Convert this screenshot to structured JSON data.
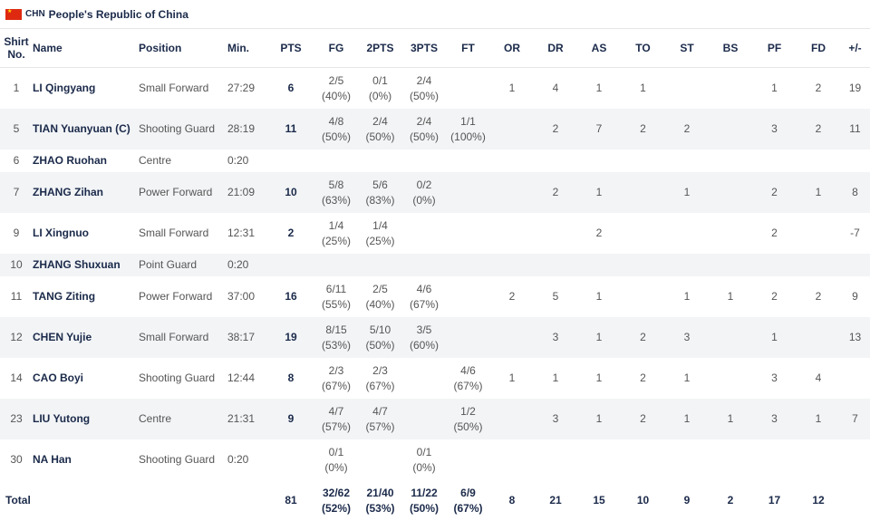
{
  "team": {
    "flag": "china-flag-icon",
    "flag_color": "#de2910",
    "code": "CHN",
    "name": "People's Republic of China"
  },
  "columns": {
    "shirt": "Shirt No.",
    "name": "Name",
    "position": "Position",
    "min": "Min.",
    "pts": "PTS",
    "fg": "FG",
    "two": "2PTS",
    "three": "3PTS",
    "ft": "FT",
    "or": "OR",
    "dr": "DR",
    "as": "AS",
    "to": "TO",
    "st": "ST",
    "bs": "BS",
    "pf": "PF",
    "fd": "FD",
    "pm": "+/-"
  },
  "players": [
    {
      "no": "1",
      "name": "LI Qingyang",
      "pos": "Small Forward",
      "min": "27:29",
      "pts": "6",
      "fg": [
        "2/5",
        "(40%)"
      ],
      "two": [
        "0/1",
        "(0%)"
      ],
      "three": [
        "2/4",
        "(50%)"
      ],
      "ft": [
        "",
        ""
      ],
      "or": "1",
      "dr": "4",
      "as": "1",
      "to": "1",
      "st": "",
      "bs": "",
      "pf": "1",
      "fd": "2",
      "pm": "19"
    },
    {
      "no": "5",
      "name": "TIAN Yuanyuan (C)",
      "pos": "Shooting Guard",
      "min": "28:19",
      "pts": "11",
      "fg": [
        "4/8",
        "(50%)"
      ],
      "two": [
        "2/4",
        "(50%)"
      ],
      "three": [
        "2/4",
        "(50%)"
      ],
      "ft": [
        "1/1",
        "(100%)"
      ],
      "or": "",
      "dr": "2",
      "as": "7",
      "to": "2",
      "st": "2",
      "bs": "",
      "pf": "3",
      "fd": "2",
      "pm": "11"
    },
    {
      "no": "6",
      "name": "ZHAO Ruohan",
      "pos": "Centre",
      "min": "0:20",
      "pts": "",
      "fg": [
        "",
        ""
      ],
      "two": [
        "",
        ""
      ],
      "three": [
        "",
        ""
      ],
      "ft": [
        "",
        ""
      ],
      "or": "",
      "dr": "",
      "as": "",
      "to": "",
      "st": "",
      "bs": "",
      "pf": "",
      "fd": "",
      "pm": ""
    },
    {
      "no": "7",
      "name": "ZHANG Zihan",
      "pos": "Power Forward",
      "min": "21:09",
      "pts": "10",
      "fg": [
        "5/8",
        "(63%)"
      ],
      "two": [
        "5/6",
        "(83%)"
      ],
      "three": [
        "0/2",
        "(0%)"
      ],
      "ft": [
        "",
        ""
      ],
      "or": "",
      "dr": "2",
      "as": "1",
      "to": "",
      "st": "1",
      "bs": "",
      "pf": "2",
      "fd": "1",
      "pm": "8"
    },
    {
      "no": "9",
      "name": "LI Xingnuo",
      "pos": "Small Forward",
      "min": "12:31",
      "pts": "2",
      "fg": [
        "1/4",
        "(25%)"
      ],
      "two": [
        "1/4",
        "(25%)"
      ],
      "three": [
        "",
        ""
      ],
      "ft": [
        "",
        ""
      ],
      "or": "",
      "dr": "",
      "as": "2",
      "to": "",
      "st": "",
      "bs": "",
      "pf": "2",
      "fd": "",
      "pm": "-7"
    },
    {
      "no": "10",
      "name": "ZHANG Shuxuan",
      "pos": "Point Guard",
      "min": "0:20",
      "pts": "",
      "fg": [
        "",
        ""
      ],
      "two": [
        "",
        ""
      ],
      "three": [
        "",
        ""
      ],
      "ft": [
        "",
        ""
      ],
      "or": "",
      "dr": "",
      "as": "",
      "to": "",
      "st": "",
      "bs": "",
      "pf": "",
      "fd": "",
      "pm": ""
    },
    {
      "no": "11",
      "name": "TANG Ziting",
      "pos": "Power Forward",
      "min": "37:00",
      "pts": "16",
      "fg": [
        "6/11",
        "(55%)"
      ],
      "two": [
        "2/5",
        "(40%)"
      ],
      "three": [
        "4/6",
        "(67%)"
      ],
      "ft": [
        "",
        ""
      ],
      "or": "2",
      "dr": "5",
      "as": "1",
      "to": "",
      "st": "1",
      "bs": "1",
      "pf": "2",
      "fd": "2",
      "pm": "9"
    },
    {
      "no": "12",
      "name": "CHEN Yujie",
      "pos": "Small Forward",
      "min": "38:17",
      "pts": "19",
      "fg": [
        "8/15",
        "(53%)"
      ],
      "two": [
        "5/10",
        "(50%)"
      ],
      "three": [
        "3/5",
        "(60%)"
      ],
      "ft": [
        "",
        ""
      ],
      "or": "",
      "dr": "3",
      "as": "1",
      "to": "2",
      "st": "3",
      "bs": "",
      "pf": "1",
      "fd": "",
      "pm": "13"
    },
    {
      "no": "14",
      "name": "CAO Boyi",
      "pos": "Shooting Guard",
      "min": "12:44",
      "pts": "8",
      "fg": [
        "2/3",
        "(67%)"
      ],
      "two": [
        "2/3",
        "(67%)"
      ],
      "three": [
        "",
        ""
      ],
      "ft": [
        "4/6",
        "(67%)"
      ],
      "or": "1",
      "dr": "1",
      "as": "1",
      "to": "2",
      "st": "1",
      "bs": "",
      "pf": "3",
      "fd": "4",
      "pm": ""
    },
    {
      "no": "23",
      "name": "LIU Yutong",
      "pos": "Centre",
      "min": "21:31",
      "pts": "9",
      "fg": [
        "4/7",
        "(57%)"
      ],
      "two": [
        "4/7",
        "(57%)"
      ],
      "three": [
        "",
        ""
      ],
      "ft": [
        "1/2",
        "(50%)"
      ],
      "or": "",
      "dr": "3",
      "as": "1",
      "to": "2",
      "st": "1",
      "bs": "1",
      "pf": "3",
      "fd": "1",
      "pm": "7"
    },
    {
      "no": "30",
      "name": "NA Han",
      "pos": "Shooting Guard",
      "min": "0:20",
      "pts": "",
      "fg": [
        "0/1",
        "(0%)"
      ],
      "two": [
        "",
        ""
      ],
      "three": [
        "0/1",
        "(0%)"
      ],
      "ft": [
        "",
        ""
      ],
      "or": "",
      "dr": "",
      "as": "",
      "to": "",
      "st": "",
      "bs": "",
      "pf": "",
      "fd": "",
      "pm": ""
    }
  ],
  "total": {
    "label": "Total",
    "pts": "81",
    "fg": [
      "32/62",
      "(52%)"
    ],
    "two": [
      "21/40",
      "(53%)"
    ],
    "three": [
      "11/22",
      "(50%)"
    ],
    "ft": [
      "6/9",
      "(67%)"
    ],
    "or": "8",
    "dr": "21",
    "as": "15",
    "to": "10",
    "st": "9",
    "bs": "2",
    "pf": "17",
    "fd": "12",
    "pm": ""
  }
}
